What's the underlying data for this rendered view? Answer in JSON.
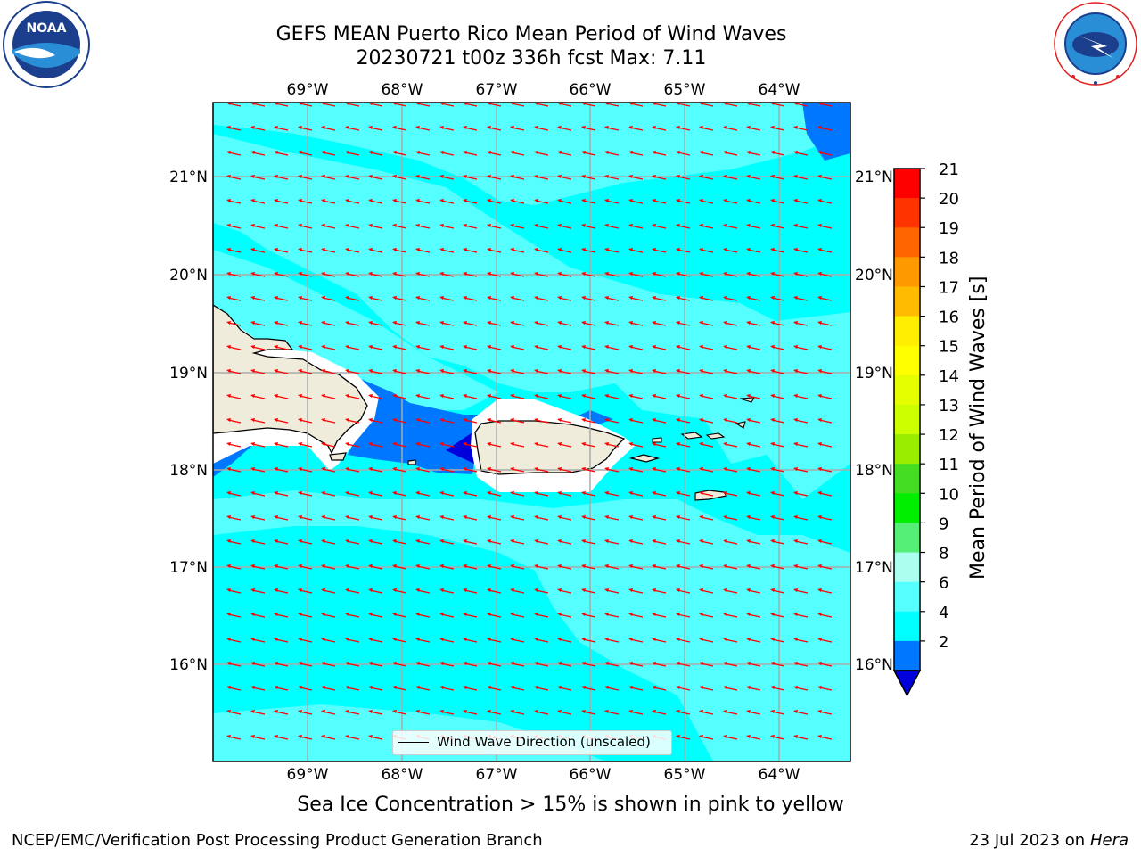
{
  "header": {
    "title_line1": "GEFS MEAN Puerto Rico Mean Period of Wind Waves",
    "title_line2": "20230721 t00z 336h fcst   Max: 7.11"
  },
  "logos": {
    "left": {
      "icon": "noaa-logo",
      "text": "NOAA"
    },
    "right": {
      "icon": "nws-logo",
      "text": "NATIONAL WEATHER SERVICE"
    }
  },
  "map": {
    "lon_labels": [
      "69°W",
      "68°W",
      "67°W",
      "66°W",
      "65°W",
      "64°W"
    ],
    "lat_labels": [
      "21°N",
      "20°N",
      "19°N",
      "18°N",
      "17°N",
      "16°N"
    ],
    "legend_text": "Wind Wave Direction (unscaled)",
    "arrow_color": "#ff0000",
    "land_color": "#efecdc"
  },
  "colorbar": {
    "label": "Mean Period of Wind Waves [s]",
    "ticks": [
      "21",
      "20",
      "19",
      "18",
      "17",
      "16",
      "15",
      "14",
      "13",
      "12",
      "11",
      "10",
      "9",
      "8",
      "6",
      "4",
      "2"
    ],
    "colors": [
      "#ff0000",
      "#ff3300",
      "#ff6600",
      "#ff9900",
      "#ffbb00",
      "#ffee00",
      "#ffff00",
      "#e6ff00",
      "#ccff00",
      "#99ee00",
      "#44dd22",
      "#00ee00",
      "#55ee77",
      "#aaffee",
      "#55ffff",
      "#00ffff",
      "#0077ff"
    ],
    "under_color": "#0000dd"
  },
  "subtitle": "Sea Ice Concentration > 15% is shown in pink to yellow",
  "footer": {
    "left": "NCEP/EMC/Verification Post Processing Product Generation Branch",
    "right_prefix": "23 Jul 2023 on ",
    "right_machine": "Hera"
  }
}
